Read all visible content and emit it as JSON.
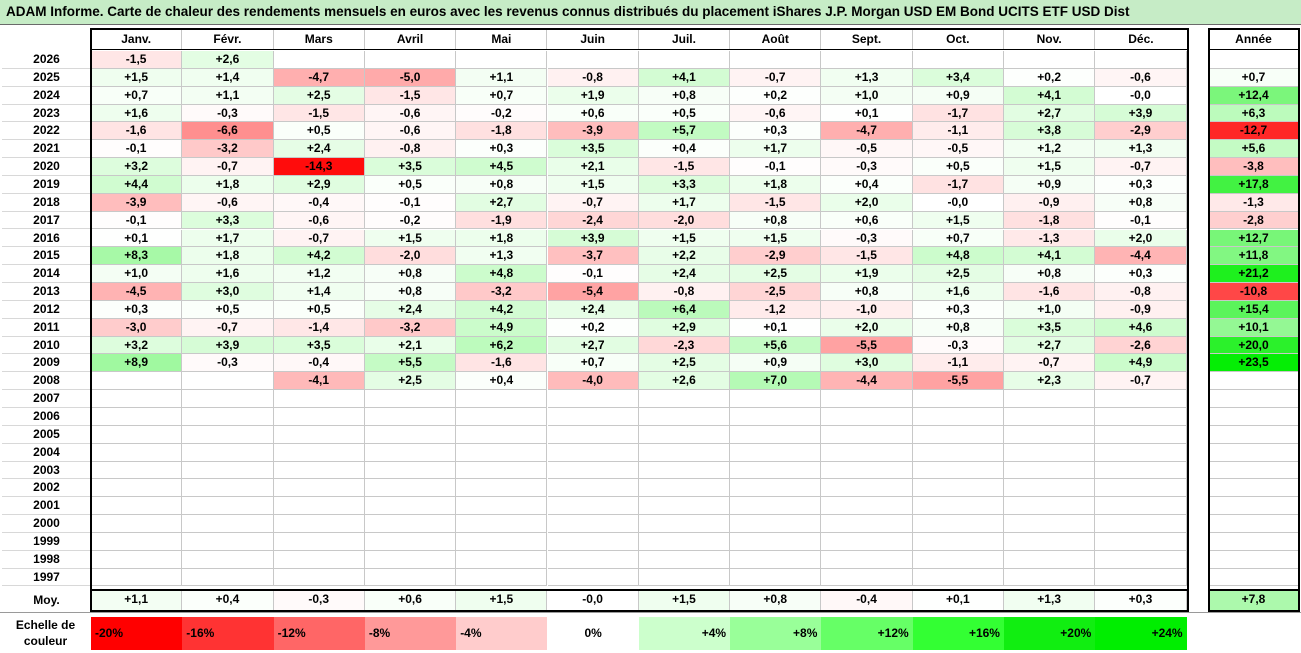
{
  "title": "ADAM Informe. Carte de chaleur des rendements mensuels en euros avec les revenus connus distribués du placement iShares J.P. Morgan USD EM Bond UCITS ETF USD Dist",
  "chart_data": {
    "type": "heatmap",
    "columns": [
      "Janv.",
      "Févr.",
      "Mars",
      "Avril",
      "Mai",
      "Juin",
      "Juil.",
      "Août",
      "Sept.",
      "Oct.",
      "Nov.",
      "Déc."
    ],
    "annual_label": "Année",
    "rows": [
      {
        "year": "2026",
        "months": [
          -1.5,
          2.6,
          null,
          null,
          null,
          null,
          null,
          null,
          null,
          null,
          null,
          null
        ],
        "annual": null
      },
      {
        "year": "2025",
        "months": [
          1.5,
          1.4,
          -4.7,
          -5.0,
          1.1,
          -0.8,
          4.1,
          -0.7,
          1.3,
          3.4,
          0.2,
          -0.6
        ],
        "annual": 0.7
      },
      {
        "year": "2024",
        "months": [
          0.7,
          1.1,
          2.5,
          -1.5,
          0.7,
          1.9,
          0.8,
          0.2,
          1.0,
          0.9,
          4.1,
          -0.0
        ],
        "annual": 12.4
      },
      {
        "year": "2023",
        "months": [
          1.6,
          -0.3,
          -1.5,
          -0.6,
          -0.2,
          0.6,
          0.5,
          -0.6,
          0.1,
          -1.7,
          2.7,
          3.9
        ],
        "annual": 6.3
      },
      {
        "year": "2022",
        "months": [
          -1.6,
          -6.6,
          0.5,
          -0.6,
          -1.8,
          -3.9,
          5.7,
          0.3,
          -4.7,
          -1.1,
          3.8,
          -2.9
        ],
        "annual": -12.7
      },
      {
        "year": "2021",
        "months": [
          -0.1,
          -3.2,
          2.4,
          -0.8,
          0.3,
          3.5,
          0.4,
          1.7,
          -0.5,
          -0.5,
          1.2,
          1.3
        ],
        "annual": 5.6
      },
      {
        "year": "2020",
        "months": [
          3.2,
          -0.7,
          -14.3,
          3.5,
          4.5,
          2.1,
          -1.5,
          -0.1,
          -0.3,
          0.5,
          1.5,
          -0.7
        ],
        "annual": -3.8
      },
      {
        "year": "2019",
        "months": [
          4.4,
          1.8,
          2.9,
          0.5,
          0.8,
          1.5,
          3.3,
          1.8,
          0.4,
          -1.7,
          0.9,
          0.3
        ],
        "annual": 17.8
      },
      {
        "year": "2018",
        "months": [
          -3.9,
          -0.6,
          -0.4,
          -0.1,
          2.7,
          -0.7,
          1.7,
          -1.5,
          2.0,
          -0.0,
          -0.9,
          0.8
        ],
        "annual": -1.3
      },
      {
        "year": "2017",
        "months": [
          -0.1,
          3.3,
          -0.6,
          -0.2,
          -1.9,
          -2.4,
          -2.0,
          0.8,
          0.6,
          1.5,
          -1.8,
          -0.1
        ],
        "annual": -2.8
      },
      {
        "year": "2016",
        "months": [
          0.1,
          1.7,
          -0.7,
          1.5,
          1.8,
          3.9,
          1.5,
          1.5,
          -0.3,
          0.7,
          -1.3,
          2.0
        ],
        "annual": 12.7
      },
      {
        "year": "2015",
        "months": [
          8.3,
          1.8,
          4.2,
          -2.0,
          1.3,
          -3.7,
          2.2,
          -2.9,
          -1.5,
          4.8,
          4.1,
          -4.4
        ],
        "annual": 11.8
      },
      {
        "year": "2014",
        "months": [
          1.0,
          1.6,
          1.2,
          0.8,
          4.8,
          -0.1,
          2.4,
          2.5,
          1.9,
          2.5,
          0.8,
          0.3
        ],
        "annual": 21.2
      },
      {
        "year": "2013",
        "months": [
          -4.5,
          3.0,
          1.4,
          0.8,
          -3.2,
          -5.4,
          -0.8,
          -2.5,
          0.8,
          1.6,
          -1.6,
          -0.8
        ],
        "annual": -10.8
      },
      {
        "year": "2012",
        "months": [
          0.3,
          0.5,
          0.5,
          2.4,
          4.2,
          2.4,
          6.4,
          -1.2,
          -1.0,
          0.3,
          1.0,
          -0.9
        ],
        "annual": 15.4
      },
      {
        "year": "2011",
        "months": [
          -3.0,
          -0.7,
          -1.4,
          -3.2,
          4.9,
          0.2,
          2.9,
          0.1,
          2.0,
          0.8,
          3.5,
          4.6
        ],
        "annual": 10.1
      },
      {
        "year": "2010",
        "months": [
          3.2,
          3.9,
          3.5,
          2.1,
          6.2,
          2.7,
          -2.3,
          5.6,
          -5.5,
          -0.3,
          2.7,
          -2.6
        ],
        "annual": 20.0
      },
      {
        "year": "2009",
        "months": [
          8.9,
          -0.3,
          -0.4,
          5.5,
          -1.6,
          0.7,
          2.5,
          0.9,
          3.0,
          -1.1,
          -0.7,
          4.9
        ],
        "annual": 23.5
      },
      {
        "year": "2008",
        "months": [
          null,
          null,
          -4.1,
          2.5,
          0.4,
          -4.0,
          2.6,
          7.0,
          -4.4,
          -5.5,
          2.3,
          -0.7
        ],
        "annual": null
      },
      {
        "year": "2007",
        "months": [
          null,
          null,
          null,
          null,
          null,
          null,
          null,
          null,
          null,
          null,
          null,
          null
        ],
        "annual": null
      },
      {
        "year": "2006",
        "months": [
          null,
          null,
          null,
          null,
          null,
          null,
          null,
          null,
          null,
          null,
          null,
          null
        ],
        "annual": null
      },
      {
        "year": "2005",
        "months": [
          null,
          null,
          null,
          null,
          null,
          null,
          null,
          null,
          null,
          null,
          null,
          null
        ],
        "annual": null
      },
      {
        "year": "2004",
        "months": [
          null,
          null,
          null,
          null,
          null,
          null,
          null,
          null,
          null,
          null,
          null,
          null
        ],
        "annual": null
      },
      {
        "year": "2003",
        "months": [
          null,
          null,
          null,
          null,
          null,
          null,
          null,
          null,
          null,
          null,
          null,
          null
        ],
        "annual": null
      },
      {
        "year": "2002",
        "months": [
          null,
          null,
          null,
          null,
          null,
          null,
          null,
          null,
          null,
          null,
          null,
          null
        ],
        "annual": null
      },
      {
        "year": "2001",
        "months": [
          null,
          null,
          null,
          null,
          null,
          null,
          null,
          null,
          null,
          null,
          null,
          null
        ],
        "annual": null
      },
      {
        "year": "2000",
        "months": [
          null,
          null,
          null,
          null,
          null,
          null,
          null,
          null,
          null,
          null,
          null,
          null
        ],
        "annual": null
      },
      {
        "year": "1999",
        "months": [
          null,
          null,
          null,
          null,
          null,
          null,
          null,
          null,
          null,
          null,
          null,
          null
        ],
        "annual": null
      },
      {
        "year": "1998",
        "months": [
          null,
          null,
          null,
          null,
          null,
          null,
          null,
          null,
          null,
          null,
          null,
          null
        ],
        "annual": null
      },
      {
        "year": "1997",
        "months": [
          null,
          null,
          null,
          null,
          null,
          null,
          null,
          null,
          null,
          null,
          null,
          null
        ],
        "annual": null
      }
    ],
    "average": {
      "label": "Moy.",
      "months": [
        1.1,
        0.4,
        -0.3,
        0.6,
        1.5,
        -0.0,
        1.5,
        0.8,
        -0.4,
        0.1,
        1.3,
        0.3
      ],
      "annual": 7.8
    },
    "color_scale": {
      "label_line1": "Echelle de",
      "label_line2": "couleur",
      "stops": [
        {
          "label": "-20%",
          "color": "#ff0000"
        },
        {
          "label": "-16%",
          "color": "#ff3333"
        },
        {
          "label": "-12%",
          "color": "#ff6666"
        },
        {
          "label": "-8%",
          "color": "#ff9999"
        },
        {
          "label": "-4%",
          "color": "#ffcccc"
        },
        {
          "label": "0%",
          "color": "#ffffff"
        },
        {
          "label": "+4%",
          "color": "#ccffcc"
        },
        {
          "label": "+8%",
          "color": "#99ff99"
        },
        {
          "label": "+12%",
          "color": "#66ff66"
        },
        {
          "label": "+16%",
          "color": "#33ff33"
        },
        {
          "label": "+20%",
          "color": "#11ee11"
        },
        {
          "label": "+24%",
          "color": "#00ee00"
        }
      ]
    }
  }
}
